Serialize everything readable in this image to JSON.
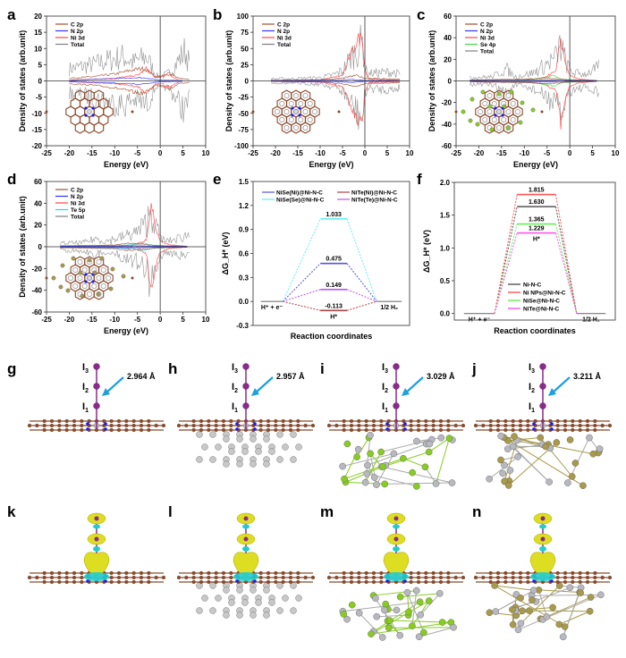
{
  "figure": {
    "panel_letters": [
      "a",
      "b",
      "c",
      "d",
      "e",
      "f",
      "g",
      "h",
      "i",
      "j",
      "k",
      "l",
      "m",
      "n"
    ]
  },
  "chart_data": [
    {
      "id": "a",
      "type": "line",
      "title": "",
      "xlabel": "Energy (eV)",
      "ylabel": "Density of states (arb.unit)",
      "xlim": [
        -25,
        10
      ],
      "ylim": [
        -20,
        20
      ],
      "xticks": [
        -25,
        -20,
        -15,
        -10,
        -5,
        0,
        5,
        10
      ],
      "yticks": [
        -20,
        -15,
        -10,
        -5,
        0,
        5,
        10,
        15,
        20
      ],
      "legend": [
        "C 2p",
        "N 2p",
        "Ni 3d",
        "Total"
      ],
      "legend_position": "top-left",
      "colors": {
        "C 2p": "#a0522d",
        "N 2p": "#3333ff",
        "Ni 3d": "#ff4444",
        "Total": "#808080"
      },
      "envelope": {
        "Total": [
          [
            -20,
            6
          ],
          [
            -15,
            8
          ],
          [
            -10,
            11
          ],
          [
            -8,
            12
          ],
          [
            -6,
            9
          ],
          [
            -3,
            12
          ],
          [
            -1,
            3
          ],
          [
            0,
            2
          ],
          [
            2,
            4
          ],
          [
            4,
            10
          ],
          [
            5.5,
            15
          ],
          [
            6.5,
            8
          ]
        ],
        "C 2p": [
          [
            -20,
            1
          ],
          [
            -15,
            1.5
          ],
          [
            -10,
            2.5
          ],
          [
            -6,
            4
          ],
          [
            -4,
            4.5
          ],
          [
            -3,
            4
          ],
          [
            -1,
            1.5
          ],
          [
            1,
            2
          ],
          [
            2,
            3
          ],
          [
            4,
            1
          ],
          [
            6.5,
            0.5
          ]
        ],
        "Ni 3d": [
          [
            -20,
            0.3
          ],
          [
            -10,
            1
          ],
          [
            -5,
            2
          ],
          [
            -3,
            4.5
          ],
          [
            -1,
            1
          ],
          [
            1,
            2
          ],
          [
            2,
            2
          ],
          [
            4,
            0.5
          ]
        ],
        "N 2p": [
          [
            -20,
            0.3
          ],
          [
            -10,
            0.8
          ],
          [
            -5,
            1.2
          ],
          [
            -3,
            1
          ],
          [
            0,
            0.3
          ],
          [
            5,
            0.2
          ]
        ]
      },
      "inset": "Ni-N-C structure"
    },
    {
      "id": "b",
      "type": "line",
      "xlabel": "Energy (eV)",
      "ylabel": "Density of states (arb.unit)",
      "xlim": [
        -25,
        10
      ],
      "ylim": [
        -100,
        100
      ],
      "xticks": [
        -25,
        -20,
        -15,
        -10,
        -5,
        0,
        5,
        10
      ],
      "yticks": [
        -100,
        -75,
        -50,
        -25,
        0,
        25,
        50,
        75,
        100
      ],
      "legend": [
        "C 2p",
        "N 2p",
        "Ni 3d",
        "Total"
      ],
      "legend_position": "top-left",
      "colors": {
        "C 2p": "#a0522d",
        "N 2p": "#3333ff",
        "Ni 3d": "#ff4444",
        "Total": "#808080"
      },
      "envelope": {
        "Total": [
          [
            -21,
            5
          ],
          [
            -15,
            6
          ],
          [
            -10,
            8
          ],
          [
            -7,
            15
          ],
          [
            -5,
            25
          ],
          [
            -3,
            60
          ],
          [
            -1.5,
            80
          ],
          [
            -0.5,
            95
          ],
          [
            0,
            40
          ],
          [
            0.5,
            18
          ],
          [
            3,
            20
          ],
          [
            6,
            22
          ],
          [
            8,
            15
          ]
        ],
        "Ni 3d": [
          [
            -21,
            1
          ],
          [
            -10,
            2
          ],
          [
            -5,
            10
          ],
          [
            -3,
            50
          ],
          [
            -1.5,
            75
          ],
          [
            -0.5,
            80
          ],
          [
            0,
            20
          ],
          [
            1,
            3
          ],
          [
            5,
            2
          ],
          [
            8,
            2
          ]
        ],
        "C 2p": [
          [
            -21,
            1
          ],
          [
            -10,
            2
          ],
          [
            -5,
            5
          ],
          [
            -2,
            10
          ],
          [
            0,
            5
          ],
          [
            4,
            4
          ],
          [
            8,
            3
          ]
        ],
        "N 2p": [
          [
            -21,
            0.5
          ],
          [
            -5,
            2
          ],
          [
            -3,
            3
          ],
          [
            0,
            1
          ],
          [
            8,
            0.5
          ]
        ]
      },
      "inset": "Ni NPs@Ni-N-C structure"
    },
    {
      "id": "c",
      "type": "line",
      "xlabel": "Energy (eV)",
      "ylabel": "Density of states (arb.unit)",
      "xlim": [
        -25,
        10
      ],
      "ylim": [
        -60,
        60
      ],
      "xticks": [
        -25,
        -20,
        -15,
        -10,
        -5,
        0,
        5,
        10
      ],
      "yticks": [
        -60,
        -40,
        -20,
        0,
        20,
        40,
        60
      ],
      "legend": [
        "C 2p",
        "N 2p",
        "Ni 3d",
        "Se 4p",
        "Total"
      ],
      "legend_position": "top-left",
      "colors": {
        "C 2p": "#a0522d",
        "N 2p": "#3333ff",
        "Ni 3d": "#ff4444",
        "Se 4p": "#44dd44",
        "Total": "#808080"
      },
      "envelope": {
        "Total": [
          [
            -22,
            5
          ],
          [
            -17,
            6
          ],
          [
            -14,
            18
          ],
          [
            -12,
            6
          ],
          [
            -8,
            12
          ],
          [
            -5,
            25
          ],
          [
            -3,
            35
          ],
          [
            -2,
            53
          ],
          [
            -1,
            30
          ],
          [
            0,
            15
          ],
          [
            1,
            12
          ],
          [
            3,
            10
          ],
          [
            5,
            15
          ],
          [
            6.5,
            20
          ]
        ],
        "Ni 3d": [
          [
            -22,
            0.5
          ],
          [
            -10,
            1
          ],
          [
            -6,
            3
          ],
          [
            -4,
            8
          ],
          [
            -3,
            10
          ],
          [
            -2,
            47
          ],
          [
            -1,
            20
          ],
          [
            0,
            6
          ],
          [
            2,
            2
          ],
          [
            6,
            0.5
          ]
        ],
        "Se 4p": [
          [
            -22,
            0.5
          ],
          [
            -10,
            1
          ],
          [
            -5,
            4
          ],
          [
            -3.5,
            6
          ],
          [
            -2,
            2
          ],
          [
            0,
            1.5
          ],
          [
            2,
            1
          ],
          [
            6,
            0.5
          ]
        ],
        "C 2p": [
          [
            -22,
            1
          ],
          [
            -10,
            2
          ],
          [
            -5,
            3
          ],
          [
            -2,
            2
          ],
          [
            0,
            1
          ],
          [
            6,
            0.5
          ]
        ],
        "N 2p": [
          [
            -22,
            0.5
          ],
          [
            -5,
            1
          ],
          [
            0,
            0.5
          ],
          [
            6,
            0.3
          ]
        ]
      },
      "inset": "NiSe@Ni-N-C structure"
    },
    {
      "id": "d",
      "type": "line",
      "xlabel": "Energy (eV)",
      "ylabel": "Density of states (arb.unit)",
      "xlim": [
        -25,
        10
      ],
      "ylim": [
        -60,
        60
      ],
      "xticks": [
        -25,
        -20,
        -15,
        -10,
        -5,
        0,
        5,
        10
      ],
      "yticks": [
        -60,
        -40,
        -20,
        0,
        20,
        40,
        60
      ],
      "legend": [
        "C 2p",
        "N 2p",
        "Ni 3d",
        "Te 5p",
        "Total"
      ],
      "legend_position": "top-left",
      "colors": {
        "C 2p": "#a0522d",
        "N 2p": "#3333ff",
        "Ni 3d": "#ff4444",
        "Te 5p": "#22dddd",
        "Total": "#808080"
      },
      "envelope": {
        "Total": [
          [
            -22,
            5
          ],
          [
            -17,
            6
          ],
          [
            -14,
            12
          ],
          [
            -12,
            8
          ],
          [
            -8,
            15
          ],
          [
            -5,
            22
          ],
          [
            -3,
            35
          ],
          [
            -2,
            55
          ],
          [
            -1,
            30
          ],
          [
            0,
            15
          ],
          [
            1,
            8
          ],
          [
            3,
            10
          ],
          [
            5,
            15
          ],
          [
            6.5,
            18
          ]
        ],
        "Ni 3d": [
          [
            -22,
            0.5
          ],
          [
            -10,
            1
          ],
          [
            -6,
            2
          ],
          [
            -4,
            5
          ],
          [
            -3,
            8
          ],
          [
            -2,
            47
          ],
          [
            -1,
            20
          ],
          [
            0,
            6
          ],
          [
            2,
            2
          ],
          [
            6,
            0.5
          ]
        ],
        "Te 5p": [
          [
            -22,
            0.5
          ],
          [
            -10,
            1
          ],
          [
            -5,
            3
          ],
          [
            -3.5,
            4
          ],
          [
            -2,
            2
          ],
          [
            0,
            1.5
          ],
          [
            2,
            1
          ],
          [
            6,
            0.5
          ]
        ],
        "C 2p": [
          [
            -22,
            1
          ],
          [
            -10,
            2
          ],
          [
            -7,
            4
          ],
          [
            -5,
            3
          ],
          [
            -2,
            2
          ],
          [
            0,
            1
          ],
          [
            6,
            0.5
          ]
        ],
        "N 2p": [
          [
            -22,
            0.5
          ],
          [
            -5,
            1
          ],
          [
            0,
            0.5
          ],
          [
            6,
            0.3
          ]
        ]
      },
      "inset": "NiTe@Ni-N-C structure"
    },
    {
      "id": "e",
      "type": "line",
      "subtype": "free-energy-diagram",
      "xlabel": "Reaction coordinates",
      "ylabel": "ΔG_H* (eV)",
      "ylim": [
        -0.3,
        1.5
      ],
      "yticks": [
        -0.3,
        0.0,
        0.3,
        0.6,
        0.9,
        1.2,
        1.5
      ],
      "states": [
        "H⁺ + e⁻",
        "H*",
        "1/2 H₂"
      ],
      "state_label_left": "H⁺ + e⁻",
      "state_label_right": "1/2 H₂",
      "state_label_mid": "H*",
      "legend_position": "top",
      "series": [
        {
          "name": "NiSe(Ni)@Ni-N-C",
          "color": "#5555dd",
          "values": [
            0,
            0.475,
            0
          ],
          "label": "0.475"
        },
        {
          "name": "NiSe(Se)@Ni-N-C",
          "color": "#66eeee",
          "values": [
            0,
            1.033,
            0
          ],
          "label": "1.033"
        },
        {
          "name": "NiTe(Ni)@Ni-N-C",
          "color": "#aa4444",
          "values": [
            0,
            -0.113,
            0
          ],
          "label": "-0.113"
        },
        {
          "name": "NiTe(Te)@Ni-N-C",
          "color": "#bb55ee",
          "values": [
            0,
            0.149,
            0
          ],
          "label": "0.149"
        }
      ]
    },
    {
      "id": "f",
      "type": "line",
      "subtype": "free-energy-diagram",
      "xlabel": "Reaction coordinates",
      "ylabel": "ΔG_H* (eV)",
      "ylim": [
        -0.1,
        2.0
      ],
      "yticks": [
        0.0,
        0.5,
        1.0,
        1.5,
        2.0
      ],
      "states": [
        "H⁺ + e⁻",
        "H*",
        "1/2 H₂"
      ],
      "state_label_left": "H⁺ + e⁻",
      "state_label_right": "1/2 H₂",
      "state_label_mid": "H*",
      "legend_position": "bottom-center",
      "series": [
        {
          "name": "Ni-N-C",
          "color": "#555555",
          "values": [
            0,
            1.63,
            0
          ],
          "label": "1.630"
        },
        {
          "name": "Ni NPs@Ni-N-C",
          "color": "#ff5555",
          "values": [
            0,
            1.815,
            0
          ],
          "label": "1.815"
        },
        {
          "name": "NiSe@Ni-N-C",
          "color": "#66ee55",
          "values": [
            0,
            1.365,
            0
          ],
          "label": "1.365"
        },
        {
          "name": "NiTe@Ni-N-C",
          "color": "#ff55ee",
          "values": [
            0,
            1.229,
            0
          ],
          "label": "1.229"
        }
      ]
    }
  ],
  "structures": [
    {
      "id": "g",
      "atoms": [
        "I3",
        "I2",
        "I1"
      ],
      "distance": "2.964 Å",
      "substrate": "none"
    },
    {
      "id": "h",
      "atoms": [
        "I3",
        "I2",
        "I1"
      ],
      "distance": "2.957 Å",
      "substrate": "Ni"
    },
    {
      "id": "i",
      "atoms": [
        "I3",
        "I2",
        "I1"
      ],
      "distance": "3.029 Å",
      "substrate": "NiSe"
    },
    {
      "id": "j",
      "atoms": [
        "I3",
        "I2",
        "I1"
      ],
      "distance": "3.211 Å",
      "substrate": "NiTe"
    }
  ],
  "charge_density": [
    {
      "id": "k",
      "substrate": "none"
    },
    {
      "id": "l",
      "substrate": "Ni"
    },
    {
      "id": "m",
      "substrate": "NiSe"
    },
    {
      "id": "n",
      "substrate": "NiTe"
    }
  ],
  "colors": {
    "carbon": "#8b4a2b",
    "nitrogen": "#1a1aee",
    "nickel": "#b0b0b0",
    "iodine": "#8a2a8a",
    "selenium": "#88cc22",
    "tellurium": "#a89a4a",
    "arrow": "#1aa0e0",
    "isosurface_yellow": "#dddd22",
    "isosurface_cyan": "#22cccc"
  }
}
